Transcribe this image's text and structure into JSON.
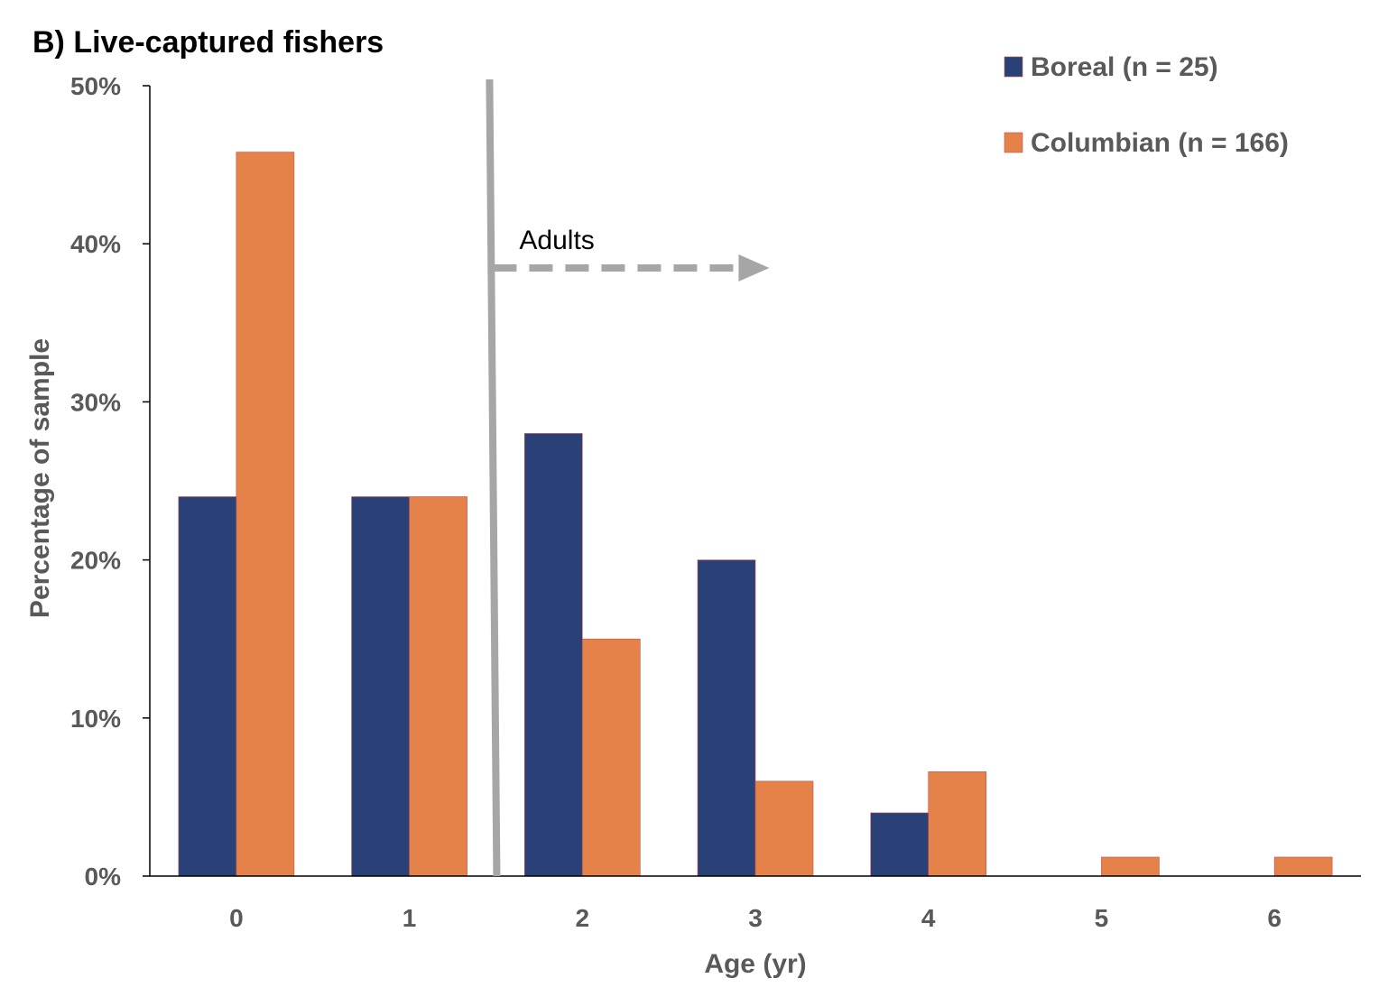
{
  "chart_data": {
    "type": "bar",
    "title": "B) Live-captured fishers",
    "xlabel": "Age (yr)",
    "ylabel": "Percentage of sample",
    "categories": [
      "0",
      "1",
      "2",
      "3",
      "4",
      "5",
      "6"
    ],
    "series": [
      {
        "name": "Boreal (n = 25)",
        "color": "#2a4177",
        "values": [
          24,
          24,
          28,
          20,
          4,
          0,
          0
        ]
      },
      {
        "name": "Columbian (n = 166)",
        "color": "#e5824a",
        "values": [
          45.8,
          24,
          15,
          6,
          6.6,
          1.2,
          1.2
        ]
      }
    ],
    "ylim": [
      0,
      50
    ],
    "yticks": [
      "0%",
      "10%",
      "20%",
      "30%",
      "40%",
      "50%"
    ],
    "ytick_values": [
      0,
      10,
      20,
      30,
      40,
      50
    ],
    "legend_position": "top-right",
    "grid": false,
    "annotations": [
      {
        "text": "Adults",
        "divider_between": [
          "1",
          "2"
        ],
        "arrow": "right",
        "color": "#a6a6a6"
      }
    ]
  }
}
